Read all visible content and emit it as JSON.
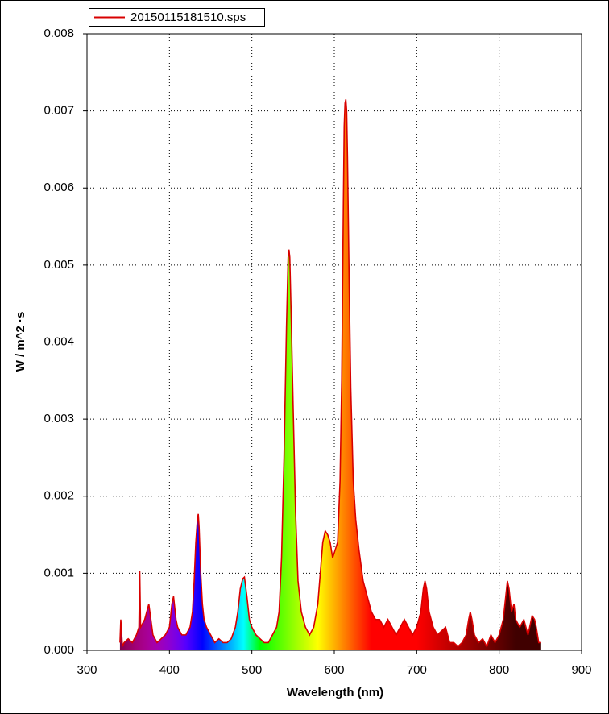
{
  "chart_data": {
    "type": "area",
    "legend": {
      "entry": "20150115181510.sps",
      "corner": "top-left"
    },
    "x_label": "Wavelength (nm)",
    "y_label": "W / m^2 ·s",
    "xlim": [
      300,
      900
    ],
    "xticks": [
      300,
      400,
      500,
      600,
      700,
      800,
      900
    ],
    "ylim": [
      0,
      0.008
    ],
    "yticks": [
      {
        "value": 0,
        "label": "0.000"
      },
      0.001,
      0.002,
      0.003,
      0.004,
      0.005,
      0.006,
      0.007,
      0.008
    ],
    "grid": true,
    "fill": "spectrum",
    "series": [
      {
        "name": "20150115181510.sps",
        "color": "#d80000",
        "x": [
          340,
          341,
          343,
          345,
          350,
          355,
          360,
          363,
          364,
          365,
          370,
          375,
          380,
          385,
          390,
          395,
          400,
          403,
          405,
          408,
          410,
          415,
          420,
          425,
          428,
          430,
          432,
          434,
          435,
          436,
          438,
          440,
          442,
          445,
          450,
          455,
          460,
          465,
          470,
          475,
          480,
          483,
          486,
          489,
          491,
          494,
          497,
          500,
          505,
          510,
          515,
          520,
          525,
          530,
          533,
          536,
          539,
          542,
          544,
          545,
          546,
          548,
          550,
          553,
          556,
          560,
          565,
          570,
          575,
          580,
          583,
          586,
          589,
          592,
          595,
          598,
          601,
          604,
          607,
          609,
          611,
          612,
          613,
          614,
          615,
          616,
          618,
          620,
          623,
          626,
          630,
          635,
          640,
          645,
          650,
          655,
          660,
          665,
          670,
          675,
          680,
          685,
          690,
          695,
          700,
          705,
          708,
          710,
          712,
          715,
          720,
          725,
          730,
          735,
          740,
          745,
          750,
          755,
          760,
          763,
          765,
          767,
          770,
          775,
          780,
          785,
          790,
          795,
          800,
          805,
          808,
          810,
          812,
          815,
          818,
          820,
          825,
          830,
          835,
          840,
          843,
          845,
          848,
          850
        ],
        "values": [
          0.0001,
          0.0004,
          5e-05,
          0.0001,
          0.00015,
          0.0001,
          0.0002,
          0.0003,
          0.00103,
          0.0003,
          0.0004,
          0.0006,
          0.0002,
          0.0001,
          0.00015,
          0.0002,
          0.0003,
          0.0006,
          0.0007,
          0.0004,
          0.0003,
          0.0002,
          0.0002,
          0.0003,
          0.0005,
          0.0009,
          0.0014,
          0.0017,
          0.00177,
          0.0016,
          0.001,
          0.0006,
          0.0004,
          0.0003,
          0.0002,
          0.0001,
          0.00015,
          0.0001,
          0.0001,
          0.00015,
          0.0003,
          0.0005,
          0.0008,
          0.00093,
          0.00095,
          0.0007,
          0.0004,
          0.0003,
          0.0002,
          0.00015,
          0.0001,
          0.0001,
          0.0002,
          0.0003,
          0.0005,
          0.0012,
          0.0025,
          0.0042,
          0.0051,
          0.0052,
          0.0051,
          0.0042,
          0.0032,
          0.0018,
          0.0009,
          0.0005,
          0.0003,
          0.0002,
          0.0003,
          0.0006,
          0.001,
          0.0014,
          0.00155,
          0.0015,
          0.0014,
          0.0012,
          0.0013,
          0.0014,
          0.0022,
          0.0035,
          0.0058,
          0.0068,
          0.0071,
          0.00715,
          0.007,
          0.0064,
          0.0048,
          0.0034,
          0.0022,
          0.0017,
          0.0013,
          0.0009,
          0.0007,
          0.0005,
          0.0004,
          0.0004,
          0.0003,
          0.0004,
          0.0003,
          0.0002,
          0.0003,
          0.0004,
          0.0003,
          0.0002,
          0.0003,
          0.0005,
          0.0008,
          0.0009,
          0.0008,
          0.0005,
          0.0003,
          0.0002,
          0.00025,
          0.0003,
          0.0001,
          0.0001,
          5e-05,
          0.0001,
          0.0002,
          0.0004,
          0.0005,
          0.0004,
          0.0002,
          0.0001,
          0.00015,
          5e-05,
          0.0002,
          0.0001,
          0.0002,
          0.0004,
          0.0007,
          0.0009,
          0.0008,
          0.0005,
          0.0006,
          0.0004,
          0.0003,
          0.0004,
          0.0002,
          0.00045,
          0.0004,
          0.0003,
          0.0001,
          0.0001
        ]
      }
    ]
  }
}
